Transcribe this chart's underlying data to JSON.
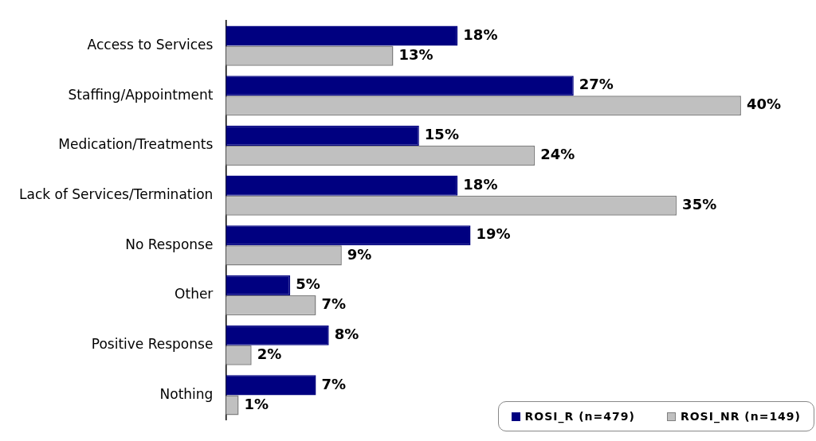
{
  "chart_data": {
    "type": "bar",
    "orientation": "horizontal",
    "tick_labels": "y",
    "legend": "bottom right",
    "categories": [
      "Access to Services",
      "Staffing/Appointment",
      "Medication/Treatments",
      "Lack of Services/Termination",
      "No Response",
      "Other",
      "Positive Response",
      "Nothing"
    ],
    "series": [
      {
        "name": "ROSI_R (n=479)",
        "color": "#000080",
        "values": [
          18,
          27,
          15,
          18,
          19,
          5,
          8,
          7
        ],
        "value_labels": [
          "18%",
          "27%",
          "15%",
          "18%",
          "19%",
          "5%",
          "8%",
          "7%"
        ]
      },
      {
        "name": "ROSI_NR (n=149)",
        "color": "#c0c0c0",
        "values": [
          13,
          40,
          24,
          35,
          9,
          7,
          2,
          1
        ],
        "value_labels": [
          "13%",
          "40%",
          "24%",
          "35%",
          "9%",
          "7%",
          "2%",
          "1%"
        ]
      }
    ]
  }
}
